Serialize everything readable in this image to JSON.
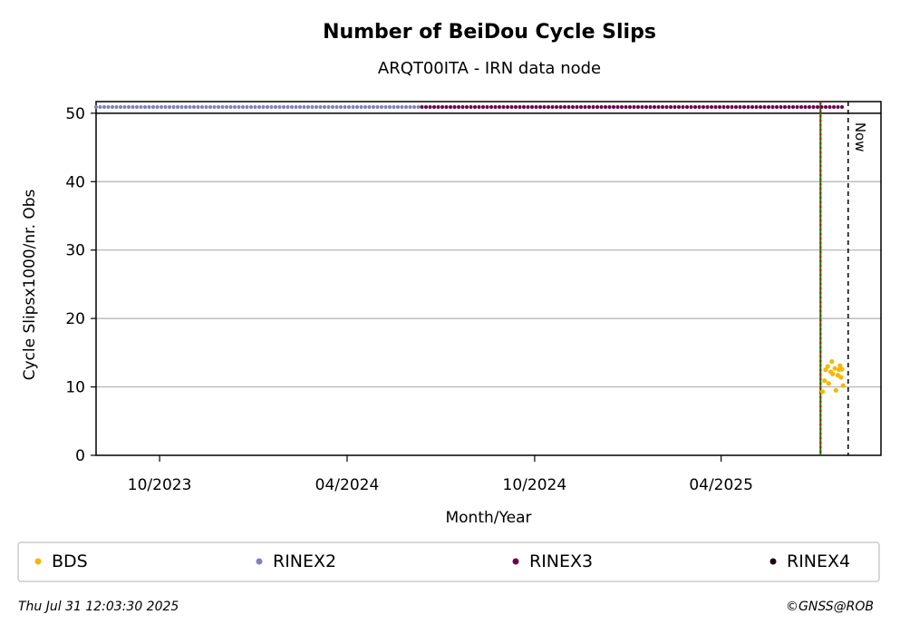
{
  "chart_data": {
    "type": "scatter",
    "title": "Number of BeiDou Cycle Slips",
    "subtitle": "ARQT00ITA - IRN data node",
    "xlabel": "Month/Year",
    "ylabel": "Cycle Slipsx1000/nr. Obs",
    "xlim": [
      "2023-07-31",
      "2025-09-04"
    ],
    "xticks": [
      {
        "value": "2023-10-01",
        "label": "10/2023"
      },
      {
        "value": "2024-04-01",
        "label": "04/2024"
      },
      {
        "value": "2024-10-01",
        "label": "10/2024"
      },
      {
        "value": "2025-04-01",
        "label": "04/2025"
      }
    ],
    "ylim": [
      0,
      51.7
    ],
    "yticks": [
      0,
      10,
      20,
      30,
      40,
      50
    ],
    "grid": true,
    "series": [
      {
        "name": "BDS",
        "color": "#f5b800",
        "x": [
          "2025-07-09",
          "2025-07-11",
          "2025-07-12",
          "2025-07-14",
          "2025-07-15",
          "2025-07-17",
          "2025-07-18",
          "2025-07-19",
          "2025-07-21",
          "2025-07-22",
          "2025-07-24",
          "2025-07-25",
          "2025-07-26",
          "2025-07-27",
          "2025-07-28",
          "2025-07-29"
        ],
        "values": [
          9.3,
          10.9,
          12.5,
          13.0,
          10.5,
          12.2,
          13.7,
          11.9,
          12.7,
          9.5,
          11.7,
          12.5,
          13.1,
          11.4,
          12.6,
          10.2
        ]
      },
      {
        "name": "RINEX2",
        "color": "#8080c0",
        "x": [
          "2023-07-31",
          "2024-06-13"
        ],
        "values": [
          50.9,
          50.9
        ]
      },
      {
        "name": "RINEX3",
        "color": "#6a0050",
        "x": [
          "2024-06-13",
          "2025-07-30"
        ],
        "values": [
          50.9,
          50.9
        ]
      },
      {
        "name": "RINEX4",
        "color": "#1a0018",
        "x": [],
        "values": []
      }
    ],
    "events": [
      {
        "x": "2025-07-07",
        "color": "#008000"
      },
      {
        "x": "2025-07-07",
        "color": "#d00000"
      }
    ],
    "now": {
      "x": "2025-08-03",
      "label": "Now"
    },
    "footer_left": "Thu Jul 31 12:03:30 2025",
    "footer_right": "©GNSS@ROB"
  }
}
